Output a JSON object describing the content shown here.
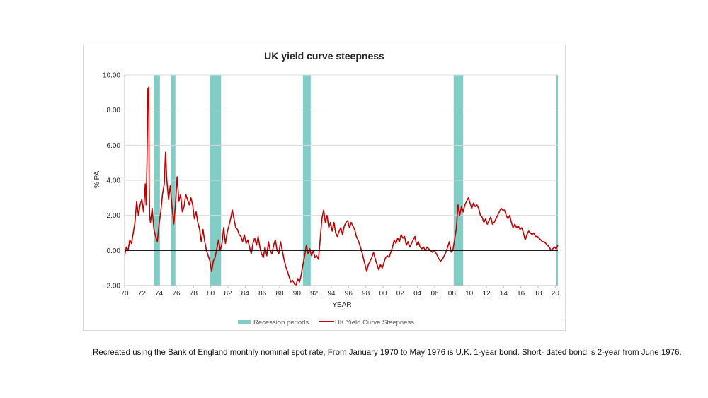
{
  "chart_data": {
    "type": "line",
    "title": "UK yield curve steepness",
    "xlabel": "YEAR",
    "ylabel": "% PA",
    "xlim": [
      1970,
      2020.3
    ],
    "ylim": [
      -2,
      10
    ],
    "y_ticks": [
      "10.00",
      "8.00",
      "6.00",
      "4.00",
      "2.00",
      "0.00",
      "-2.00"
    ],
    "y_tick_values": [
      10,
      8,
      6,
      4,
      2,
      0,
      -2
    ],
    "x_ticks": [
      "70",
      "72",
      "74",
      "76",
      "78",
      "80",
      "82",
      "84",
      "86",
      "88",
      "90",
      "92",
      "94",
      "96",
      "98",
      "00",
      "02",
      "04",
      "06",
      "08",
      "10",
      "12",
      "14",
      "16",
      "18",
      "20"
    ],
    "x_tick_values": [
      1970,
      1972,
      1974,
      1976,
      1978,
      1980,
      1982,
      1984,
      1986,
      1988,
      1990,
      1992,
      1994,
      1996,
      1998,
      2000,
      2002,
      2004,
      2006,
      2008,
      2010,
      2012,
      2014,
      2016,
      2018,
      2020
    ],
    "grid": "horizontal",
    "legend_position": "bottom",
    "recessions": [
      [
        1973.4,
        1974.1
      ],
      [
        1975.4,
        1975.9
      ],
      [
        1979.9,
        1981.2
      ],
      [
        1990.7,
        1991.6
      ],
      [
        2008.2,
        2009.3
      ],
      [
        2020.1,
        2020.3
      ]
    ],
    "series": [
      {
        "name": "UK Yield Curve Steepness",
        "color": "#c00000",
        "points": [
          [
            1970.0,
            -0.3
          ],
          [
            1970.2,
            0.2
          ],
          [
            1970.4,
            0.0
          ],
          [
            1970.6,
            0.6
          ],
          [
            1970.8,
            0.4
          ],
          [
            1971.0,
            1.0
          ],
          [
            1971.2,
            1.6
          ],
          [
            1971.4,
            2.8
          ],
          [
            1971.6,
            2.0
          ],
          [
            1971.8,
            2.6
          ],
          [
            1972.0,
            2.9
          ],
          [
            1972.2,
            2.2
          ],
          [
            1972.4,
            3.8
          ],
          [
            1972.5,
            2.6
          ],
          [
            1972.6,
            5.0
          ],
          [
            1972.7,
            9.2
          ],
          [
            1972.8,
            9.3
          ],
          [
            1972.85,
            4.0
          ],
          [
            1972.9,
            2.0
          ],
          [
            1973.0,
            1.6
          ],
          [
            1973.2,
            2.4
          ],
          [
            1973.4,
            1.2
          ],
          [
            1973.6,
            0.8
          ],
          [
            1973.8,
            0.5
          ],
          [
            1974.0,
            1.5
          ],
          [
            1974.2,
            2.2
          ],
          [
            1974.4,
            3.2
          ],
          [
            1974.6,
            3.8
          ],
          [
            1974.75,
            5.6
          ],
          [
            1974.9,
            4.0
          ],
          [
            1975.1,
            2.9
          ],
          [
            1975.3,
            3.7
          ],
          [
            1975.5,
            2.5
          ],
          [
            1975.7,
            1.5
          ],
          [
            1975.9,
            2.6
          ],
          [
            1976.1,
            4.2
          ],
          [
            1976.3,
            2.8
          ],
          [
            1976.5,
            3.2
          ],
          [
            1976.7,
            2.2
          ],
          [
            1976.9,
            2.5
          ],
          [
            1977.1,
            3.2
          ],
          [
            1977.3,
            2.9
          ],
          [
            1977.5,
            2.6
          ],
          [
            1977.7,
            3.0
          ],
          [
            1977.9,
            2.6
          ],
          [
            1978.1,
            1.8
          ],
          [
            1978.3,
            2.2
          ],
          [
            1978.5,
            1.6
          ],
          [
            1978.7,
            1.2
          ],
          [
            1978.9,
            0.5
          ],
          [
            1979.1,
            1.2
          ],
          [
            1979.3,
            0.5
          ],
          [
            1979.5,
            0.0
          ],
          [
            1979.7,
            -0.3
          ],
          [
            1979.9,
            -0.6
          ],
          [
            1980.1,
            -1.2
          ],
          [
            1980.3,
            -0.6
          ],
          [
            1980.5,
            -0.4
          ],
          [
            1980.7,
            0.1
          ],
          [
            1980.9,
            0.6
          ],
          [
            1981.1,
            0.0
          ],
          [
            1981.3,
            0.4
          ],
          [
            1981.5,
            1.3
          ],
          [
            1981.7,
            0.4
          ],
          [
            1981.9,
            1.0
          ],
          [
            1982.1,
            1.4
          ],
          [
            1982.3,
            1.8
          ],
          [
            1982.5,
            2.3
          ],
          [
            1982.7,
            1.8
          ],
          [
            1982.9,
            1.3
          ],
          [
            1983.1,
            1.2
          ],
          [
            1983.3,
            0.9
          ],
          [
            1983.5,
            0.8
          ],
          [
            1983.7,
            0.5
          ],
          [
            1983.9,
            0.9
          ],
          [
            1984.1,
            0.4
          ],
          [
            1984.3,
            0.6
          ],
          [
            1984.5,
            0.2
          ],
          [
            1984.7,
            -0.2
          ],
          [
            1984.9,
            0.4
          ],
          [
            1985.1,
            0.7
          ],
          [
            1985.3,
            0.3
          ],
          [
            1985.5,
            0.8
          ],
          [
            1985.7,
            0.2
          ],
          [
            1985.9,
            -0.2
          ],
          [
            1986.1,
            -0.4
          ],
          [
            1986.3,
            0.2
          ],
          [
            1986.5,
            -0.3
          ],
          [
            1986.7,
            0.5
          ],
          [
            1986.9,
            0.0
          ],
          [
            1987.1,
            -0.2
          ],
          [
            1987.3,
            0.3
          ],
          [
            1987.5,
            0.6
          ],
          [
            1987.7,
            0.0
          ],
          [
            1987.9,
            -0.2
          ],
          [
            1988.1,
            0.5
          ],
          [
            1988.3,
            0.0
          ],
          [
            1988.5,
            -0.5
          ],
          [
            1988.7,
            -0.9
          ],
          [
            1988.9,
            -1.2
          ],
          [
            1989.1,
            -1.5
          ],
          [
            1989.3,
            -1.8
          ],
          [
            1989.5,
            -1.7
          ],
          [
            1989.7,
            -1.9
          ],
          [
            1989.9,
            -2.0
          ],
          [
            1990.1,
            -1.6
          ],
          [
            1990.3,
            -1.8
          ],
          [
            1990.5,
            -1.4
          ],
          [
            1990.7,
            -0.8
          ],
          [
            1990.9,
            -0.3
          ],
          [
            1991.1,
            0.3
          ],
          [
            1991.3,
            -0.2
          ],
          [
            1991.5,
            0.1
          ],
          [
            1991.7,
            -0.3
          ],
          [
            1991.9,
            0.0
          ],
          [
            1992.1,
            -0.4
          ],
          [
            1992.3,
            -0.3
          ],
          [
            1992.5,
            -0.5
          ],
          [
            1992.7,
            0.6
          ],
          [
            1992.9,
            1.8
          ],
          [
            1993.1,
            2.3
          ],
          [
            1993.3,
            1.6
          ],
          [
            1993.5,
            2.0
          ],
          [
            1993.7,
            1.3
          ],
          [
            1993.9,
            1.6
          ],
          [
            1994.1,
            1.1
          ],
          [
            1994.3,
            1.6
          ],
          [
            1994.5,
            1.0
          ],
          [
            1994.7,
            0.8
          ],
          [
            1994.9,
            1.1
          ],
          [
            1995.1,
            1.3
          ],
          [
            1995.3,
            0.9
          ],
          [
            1995.5,
            1.4
          ],
          [
            1995.7,
            1.6
          ],
          [
            1995.9,
            1.7
          ],
          [
            1996.1,
            1.3
          ],
          [
            1996.3,
            1.6
          ],
          [
            1996.5,
            1.4
          ],
          [
            1996.7,
            1.2
          ],
          [
            1996.9,
            0.8
          ],
          [
            1997.1,
            0.6
          ],
          [
            1997.3,
            0.3
          ],
          [
            1997.5,
            0.0
          ],
          [
            1997.7,
            -0.4
          ],
          [
            1997.9,
            -0.8
          ],
          [
            1998.1,
            -1.2
          ],
          [
            1998.3,
            -0.8
          ],
          [
            1998.5,
            -0.6
          ],
          [
            1998.7,
            -0.4
          ],
          [
            1998.9,
            -0.1
          ],
          [
            1999.1,
            -0.5
          ],
          [
            1999.3,
            -0.8
          ],
          [
            1999.5,
            -1.1
          ],
          [
            1999.7,
            -0.8
          ],
          [
            1999.9,
            -1.0
          ],
          [
            2000.1,
            -0.7
          ],
          [
            2000.3,
            -0.4
          ],
          [
            2000.5,
            -0.3
          ],
          [
            2000.7,
            -0.4
          ],
          [
            2000.9,
            -0.1
          ],
          [
            2001.1,
            0.2
          ],
          [
            2001.3,
            0.6
          ],
          [
            2001.5,
            0.4
          ],
          [
            2001.7,
            0.7
          ],
          [
            2001.9,
            0.5
          ],
          [
            2002.1,
            0.9
          ],
          [
            2002.3,
            0.7
          ],
          [
            2002.5,
            0.8
          ],
          [
            2002.7,
            0.3
          ],
          [
            2002.9,
            0.5
          ],
          [
            2003.1,
            0.2
          ],
          [
            2003.3,
            0.4
          ],
          [
            2003.5,
            0.6
          ],
          [
            2003.7,
            0.8
          ],
          [
            2003.9,
            0.3
          ],
          [
            2004.1,
            0.5
          ],
          [
            2004.3,
            0.2
          ],
          [
            2004.5,
            0.1
          ],
          [
            2004.7,
            0.2
          ],
          [
            2004.9,
            0.0
          ],
          [
            2005.1,
            0.2
          ],
          [
            2005.3,
            0.1
          ],
          [
            2005.5,
            0.0
          ],
          [
            2005.7,
            -0.1
          ],
          [
            2005.9,
            0.0
          ],
          [
            2006.1,
            -0.1
          ],
          [
            2006.3,
            -0.3
          ],
          [
            2006.5,
            -0.5
          ],
          [
            2006.7,
            -0.6
          ],
          [
            2006.9,
            -0.5
          ],
          [
            2007.1,
            -0.3
          ],
          [
            2007.3,
            -0.1
          ],
          [
            2007.5,
            0.2
          ],
          [
            2007.7,
            0.5
          ],
          [
            2007.9,
            -0.1
          ],
          [
            2008.1,
            0.0
          ],
          [
            2008.3,
            0.6
          ],
          [
            2008.5,
            1.2
          ],
          [
            2008.7,
            2.6
          ],
          [
            2008.9,
            2.0
          ],
          [
            2009.1,
            2.5
          ],
          [
            2009.3,
            2.2
          ],
          [
            2009.5,
            2.6
          ],
          [
            2009.7,
            2.8
          ],
          [
            2009.9,
            3.0
          ],
          [
            2010.1,
            2.7
          ],
          [
            2010.3,
            2.4
          ],
          [
            2010.5,
            2.7
          ],
          [
            2010.7,
            2.5
          ],
          [
            2010.9,
            2.6
          ],
          [
            2011.1,
            2.4
          ],
          [
            2011.3,
            2.0
          ],
          [
            2011.5,
            1.9
          ],
          [
            2011.7,
            1.6
          ],
          [
            2011.9,
            1.8
          ],
          [
            2012.1,
            1.5
          ],
          [
            2012.3,
            1.7
          ],
          [
            2012.5,
            1.9
          ],
          [
            2012.7,
            1.5
          ],
          [
            2012.9,
            1.6
          ],
          [
            2013.1,
            1.8
          ],
          [
            2013.3,
            2.0
          ],
          [
            2013.5,
            2.2
          ],
          [
            2013.7,
            2.4
          ],
          [
            2013.9,
            2.3
          ],
          [
            2014.1,
            2.3
          ],
          [
            2014.3,
            2.0
          ],
          [
            2014.5,
            1.8
          ],
          [
            2014.7,
            2.0
          ],
          [
            2014.9,
            1.6
          ],
          [
            2015.1,
            1.3
          ],
          [
            2015.3,
            1.5
          ],
          [
            2015.5,
            1.3
          ],
          [
            2015.7,
            1.4
          ],
          [
            2015.9,
            1.2
          ],
          [
            2016.1,
            1.3
          ],
          [
            2016.3,
            1.0
          ],
          [
            2016.5,
            0.6
          ],
          [
            2016.7,
            0.9
          ],
          [
            2016.9,
            1.1
          ],
          [
            2017.1,
            1.0
          ],
          [
            2017.3,
            0.9
          ],
          [
            2017.5,
            1.0
          ],
          [
            2017.7,
            0.8
          ],
          [
            2017.9,
            0.8
          ],
          [
            2018.1,
            0.7
          ],
          [
            2018.3,
            0.6
          ],
          [
            2018.5,
            0.5
          ],
          [
            2018.7,
            0.5
          ],
          [
            2018.9,
            0.4
          ],
          [
            2019.1,
            0.3
          ],
          [
            2019.3,
            0.2
          ],
          [
            2019.5,
            0.0
          ],
          [
            2019.7,
            0.1
          ],
          [
            2019.9,
            0.2
          ],
          [
            2020.1,
            0.1
          ],
          [
            2020.3,
            0.3
          ]
        ]
      }
    ],
    "legend": [
      {
        "label": "Recession periods",
        "type": "bar",
        "color": "#7fcdc5"
      },
      {
        "label": "UK Yield Curve Steepness",
        "type": "line",
        "color": "#c00000"
      }
    ]
  },
  "caption": "Recreated using the Bank of England monthly nominal spot rate, From January 1970 to May 1976 is U.K. 1-year bond. Short- dated bond is 2-year from June 1976."
}
